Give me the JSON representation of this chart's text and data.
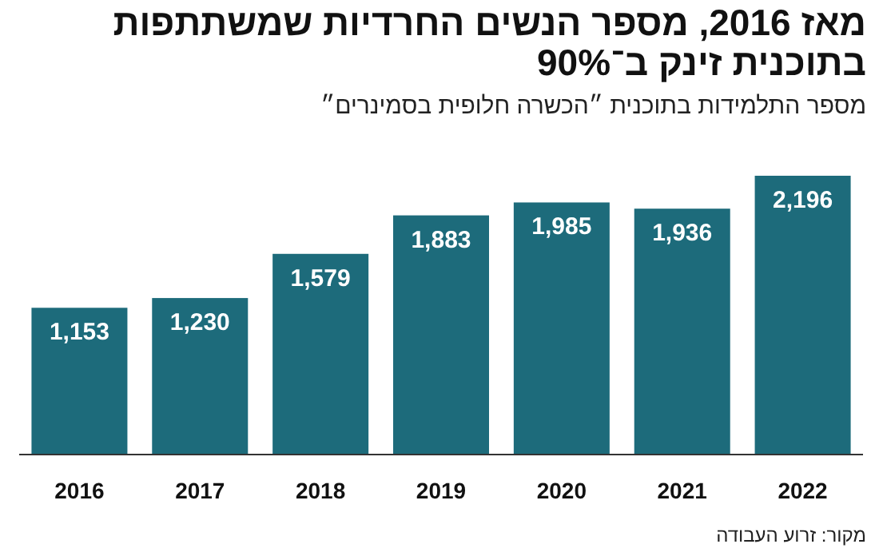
{
  "chart_data": {
    "type": "bar",
    "title": "מאז 2016, מספר הנשים החרדיות שמשתתפות בתוכנית זינק ב־90%",
    "subtitle": "מספר התלמידות בתוכנית ״הכשרה חלופית בסמינרים״",
    "categories": [
      "2016",
      "2017",
      "2018",
      "2019",
      "2020",
      "2021",
      "2022"
    ],
    "values": [
      1153,
      1230,
      1579,
      1883,
      1985,
      1936,
      2196
    ],
    "value_labels": [
      "1,153",
      "1,230",
      "1,579",
      "1,883",
      "1,985",
      "1,936",
      "2,196"
    ],
    "color": "#1d6b7b",
    "annotations": [
      "מקור: זרוע העבודה"
    ]
  }
}
